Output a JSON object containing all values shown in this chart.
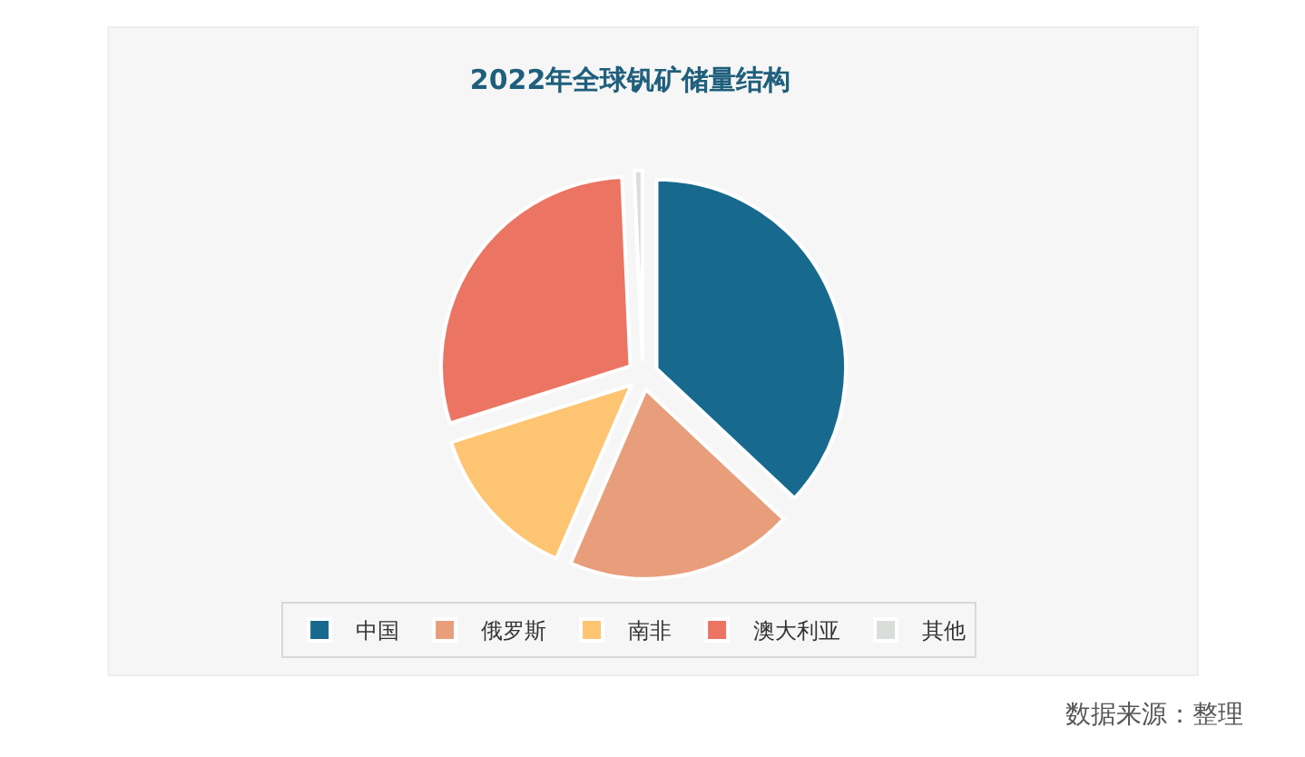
{
  "chart_data": {
    "type": "pie",
    "title": "2022年全球钒矿储量结构",
    "categories": [
      "中国",
      "俄罗斯",
      "南非",
      "澳大利亚",
      "其他"
    ],
    "values": [
      37,
      19.5,
      13.6,
      29.2,
      0.7
    ],
    "colors": [
      "#176a8e",
      "#e89e7b",
      "#fdc472",
      "#eb7463",
      "#dadedb"
    ],
    "legend": "bottom",
    "annotations": [
      "数据来源：整理"
    ]
  }
}
